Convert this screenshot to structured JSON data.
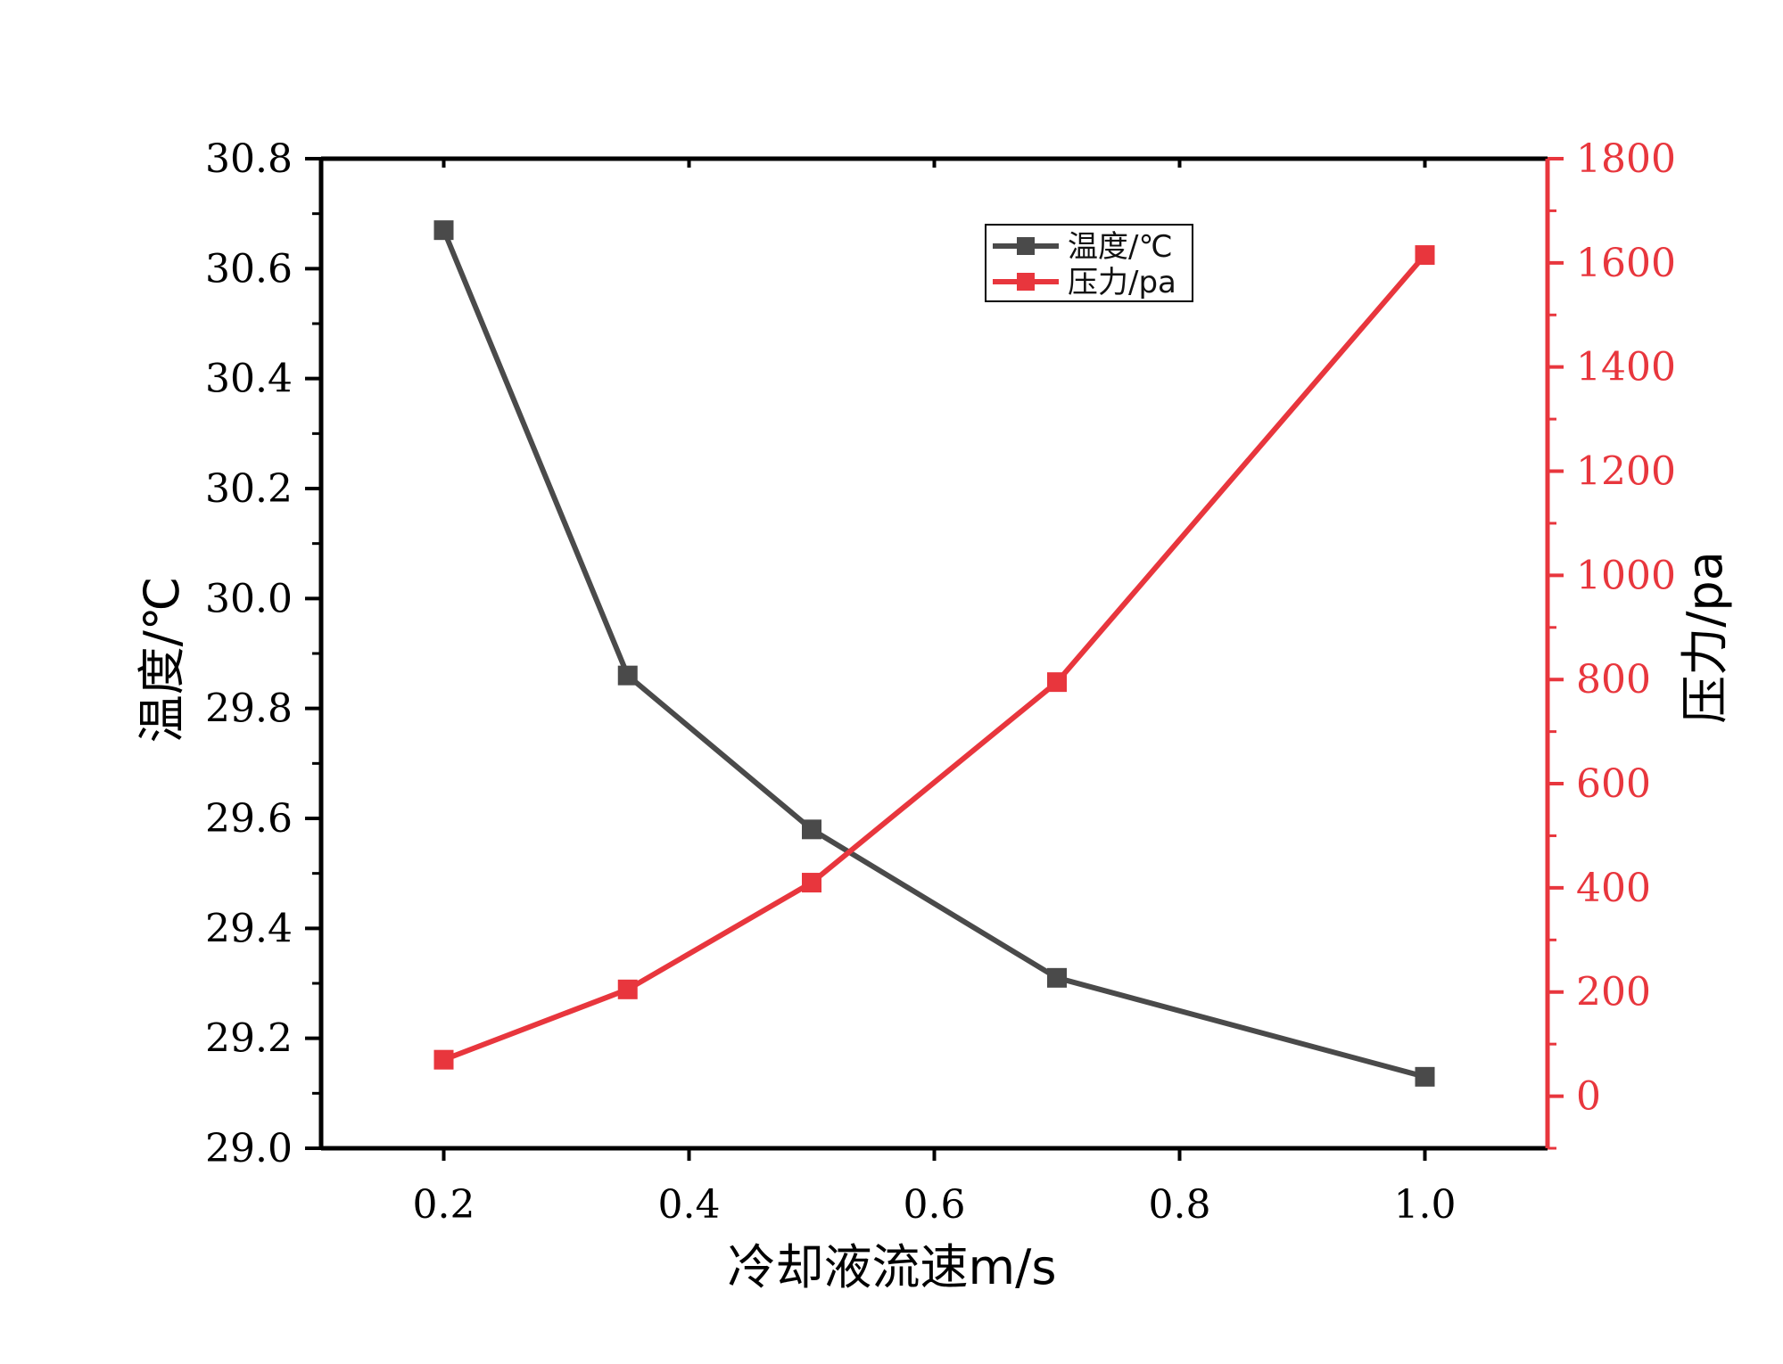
{
  "chart_data": {
    "type": "line",
    "title": "",
    "xlabel": "冷却液流速m/s",
    "ylabel_left": "温度/℃",
    "ylabel_right": "压力/pa",
    "x": [
      0.2,
      0.35,
      0.5,
      0.7,
      1.0
    ],
    "xlim": [
      0.1,
      1.1
    ],
    "ylim_left": [
      29.0,
      30.8
    ],
    "ylim_right": [
      -100,
      1800
    ],
    "xticks": [
      "0.2",
      "0.4",
      "0.6",
      "0.8",
      "1.0"
    ],
    "yticks_left": [
      "29.0",
      "29.2",
      "29.4",
      "29.6",
      "29.8",
      "30.0",
      "30.2",
      "30.4",
      "30.6",
      "30.8"
    ],
    "yticks_right": [
      "0",
      "200",
      "400",
      "600",
      "800",
      "1000",
      "1200",
      "1400",
      "1600",
      "1800"
    ],
    "grid": false,
    "legend_position": "top-center",
    "series": [
      {
        "name": "温度/℃",
        "axis": "left",
        "color": "#4a4a4a",
        "marker": "square",
        "values": [
          30.67,
          29.86,
          29.58,
          29.31,
          29.13
        ]
      },
      {
        "name": "压力/pa",
        "axis": "right",
        "color": "#e8363d",
        "marker": "square",
        "values": [
          70,
          205,
          410,
          795,
          1615
        ]
      }
    ]
  }
}
